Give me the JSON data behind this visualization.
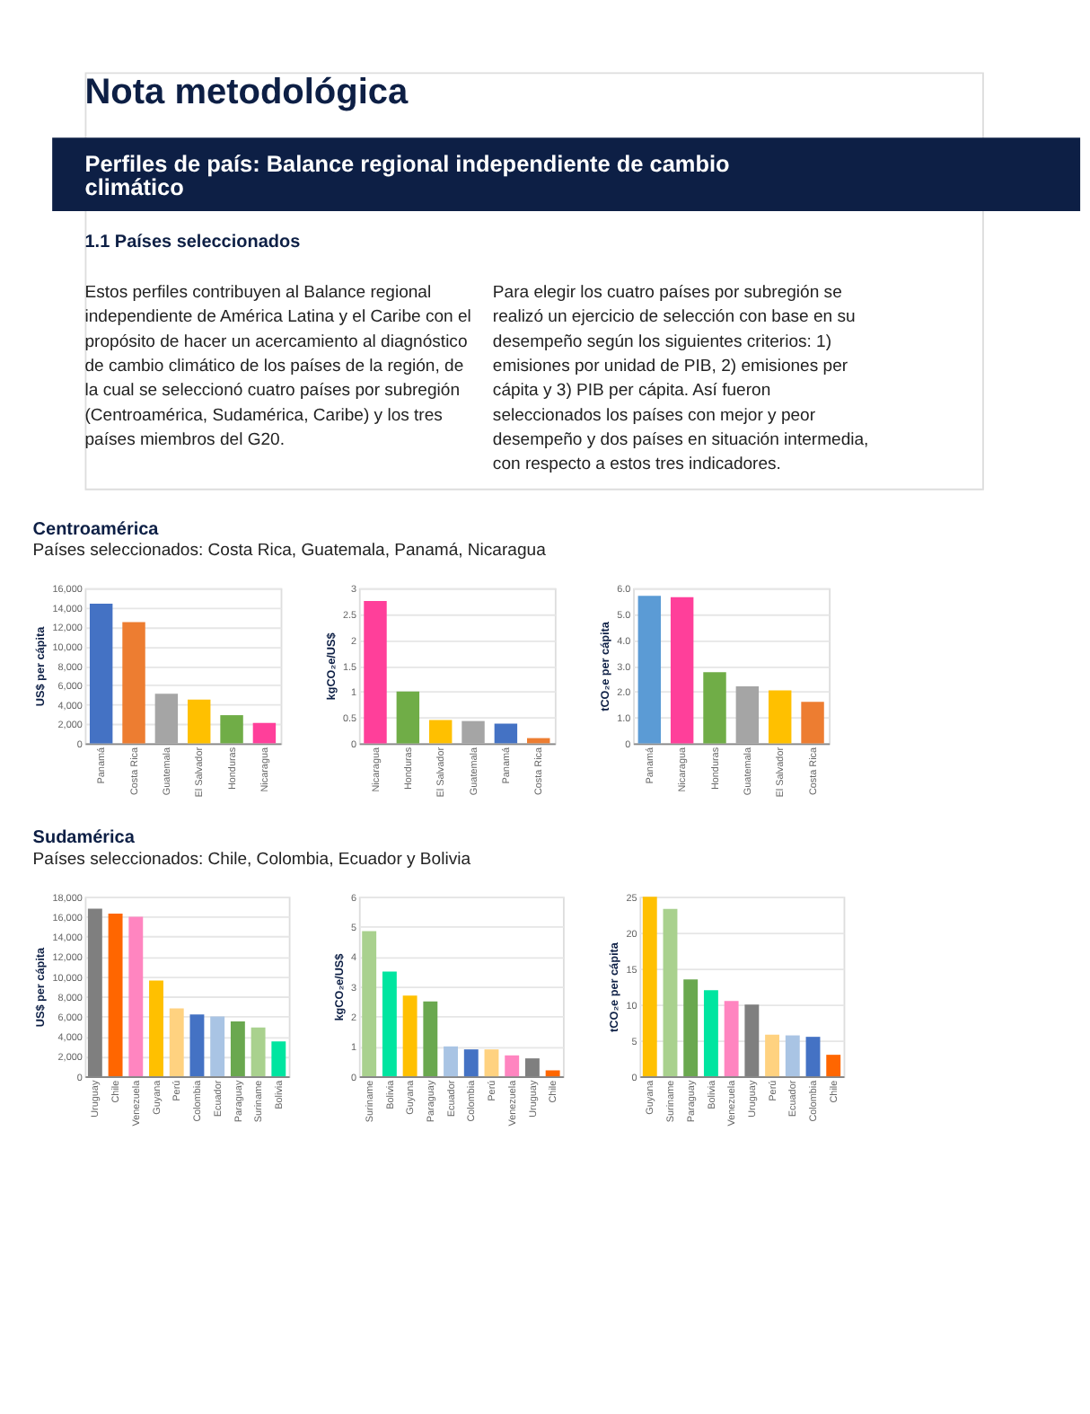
{
  "chart_data": [
    {
      "type": "other",
      "title": "Nota metodológica",
      "subtitle": "Perfiles de país: Balance regional independiente de cambio climático",
      "annotations": [
        "1.1 Países seleccionados",
        "Estos perfiles contribuyen al Balance regional independiente de América Latina y el Caribe con el propósito de hacer un acercamiento al diagnóstico de cambio climático de los países de la región, de la cual se seleccionó cuatro países por subregión (Centroamérica, Sudamérica, Caribe) y los tres países miembros del G20.",
        "Para elegir los cuatro países por subregión se realizó un ejercicio de selección con base en su desempeño según los siguientes criterios: 1) emisiones por unidad de PIB, 2) emisiones per cápita y 3) PIB per cápita. Así fueron seleccionados los países con mejor y peor desempeño y dos países en situación intermedia, con respecto a estos tres indicadores."
      ]
    },
    {
      "type": "bar",
      "title": "Centroamérica",
      "subtitle": "Países seleccionados: Costa Rica, Guatemala, Panamá, Nicaragua",
      "ylabel": "US$ per cápita",
      "categories": [
        "Panamá",
        "Costa Rica",
        "Guatemala",
        "El Salvador",
        "Honduras",
        "Nicaragua"
      ],
      "values": [
        14400,
        12500,
        5100,
        4500,
        2900,
        2100
      ],
      "colors": [
        "#4472c4",
        "#ed7d31",
        "#a5a5a5",
        "#ffc000",
        "#70ad47",
        "#ff3f9a"
      ],
      "ylim": [
        0,
        16000
      ],
      "yticks": [
        0,
        {
          "value": 2000,
          "label": "2,000"
        },
        {
          "value": 4000,
          "label": "4,000"
        },
        {
          "value": 6000,
          "label": "6,000"
        },
        {
          "value": 8000,
          "label": "8,000"
        },
        {
          "value": 10000,
          "label": "10,000"
        },
        {
          "value": 12000,
          "label": "12,000"
        },
        {
          "value": 14000,
          "label": "14,000"
        },
        {
          "value": 16000,
          "label": "16,000"
        }
      ],
      "grid": "y"
    },
    {
      "type": "bar",
      "ylabel": "kgCO₂e/US$",
      "categories": [
        "Nicaragua",
        "Honduras",
        "El Salvador",
        "Guatemala",
        "Panamá",
        "Costa Rica"
      ],
      "values": [
        2.75,
        1.0,
        0.45,
        0.43,
        0.38,
        0.1
      ],
      "colors": [
        "#ff3f9a",
        "#70ad47",
        "#ffc000",
        "#a5a5a5",
        "#4472c4",
        "#ed7d31"
      ],
      "ylim": [
        0,
        3
      ],
      "yticks": [
        0,
        0.5,
        1,
        1.5,
        2,
        2.5,
        3
      ],
      "grid": "y"
    },
    {
      "type": "bar",
      "ylabel": "tCO₂e per cápita",
      "categories": [
        "Panamá",
        "Nicaragua",
        "Honduras",
        "Guatemala",
        "El Salvador",
        "Costa Rica"
      ],
      "values": [
        5.7,
        5.65,
        2.75,
        2.2,
        2.05,
        1.6
      ],
      "colors": [
        "#5b9bd5",
        "#ff3f9a",
        "#70ad47",
        "#a5a5a5",
        "#ffc000",
        "#ed7d31"
      ],
      "ylim": [
        0,
        6
      ],
      "yticks": [
        0,
        {
          "value": 1,
          "label": "1.0"
        },
        {
          "value": 2,
          "label": "2.0"
        },
        {
          "value": 3,
          "label": "3.0"
        },
        {
          "value": 4,
          "label": "4.0"
        },
        {
          "value": 5,
          "label": "5.0"
        },
        {
          "value": 6,
          "label": "6.0"
        }
      ],
      "grid": "y"
    },
    {
      "type": "bar",
      "title": "Sudamérica",
      "subtitle": "Países seleccionados: Chile, Colombia, Ecuador y Bolivia",
      "ylabel": "US$ per cápita",
      "categories": [
        "Uruguay",
        "Chile",
        "Venezuela",
        "Guyana",
        "Perú",
        "Colombia",
        "Ecuador",
        "Paraguay",
        "Suriname",
        "Bolivia"
      ],
      "values": [
        16800,
        16300,
        16000,
        9600,
        6800,
        6200,
        6000,
        5500,
        4900,
        3500
      ],
      "colors": [
        "#7f7f7f",
        "#ff6600",
        "#ff85c0",
        "#ffc000",
        "#ffd280",
        "#4472c4",
        "#a9c4e4",
        "#6aa84f",
        "#a9d18e",
        "#00e5a0"
      ],
      "ylim": [
        0,
        18000
      ],
      "yticks": [
        0,
        {
          "value": 2000,
          "label": "2,000"
        },
        {
          "value": 4000,
          "label": "4,000"
        },
        {
          "value": 6000,
          "label": "6,000"
        },
        {
          "value": 8000,
          "label": "8,000"
        },
        {
          "value": 10000,
          "label": "10,000"
        },
        {
          "value": 12000,
          "label": "12,000"
        },
        {
          "value": 14000,
          "label": "14,000"
        },
        {
          "value": 16000,
          "label": "16,000"
        },
        {
          "value": 18000,
          "label": "18,000"
        }
      ],
      "grid": "y"
    },
    {
      "type": "bar",
      "ylabel": "kgCO₂e/US$",
      "categories": [
        "Suriname",
        "Bolivia",
        "Guyana",
        "Paraguay",
        "Ecuador",
        "Colombia",
        "Perú",
        "Venezuela",
        "Uruguay",
        "Chile"
      ],
      "values": [
        4.85,
        3.5,
        2.7,
        2.5,
        1.0,
        0.9,
        0.9,
        0.7,
        0.6,
        0.2
      ],
      "colors": [
        "#a9d18e",
        "#00e5a0",
        "#ffc000",
        "#6aa84f",
        "#a9c4e4",
        "#4472c4",
        "#ffd280",
        "#ff85c0",
        "#7f7f7f",
        "#ff6600"
      ],
      "ylim": [
        0,
        6
      ],
      "yticks": [
        0,
        1,
        2,
        3,
        4,
        5,
        6
      ],
      "grid": "y"
    },
    {
      "type": "bar",
      "ylabel": "tCO₂e per cápita",
      "categories": [
        "Guyana",
        "Suriname",
        "Paraguay",
        "Bolivia",
        "Venezuela",
        "Uruguay",
        "Perú",
        "Ecuador",
        "Colombia",
        "Chile"
      ],
      "values": [
        25,
        23.3,
        13.5,
        12,
        10.5,
        10,
        5.8,
        5.7,
        5.5,
        3
      ],
      "colors": [
        "#ffc000",
        "#a9d18e",
        "#6aa84f",
        "#00e5a0",
        "#ff85c0",
        "#7f7f7f",
        "#ffd280",
        "#a9c4e4",
        "#4472c4",
        "#ff6600"
      ],
      "ylim": [
        0,
        25
      ],
      "yticks": [
        0,
        5,
        10,
        15,
        20,
        25
      ],
      "grid": "y"
    }
  ]
}
